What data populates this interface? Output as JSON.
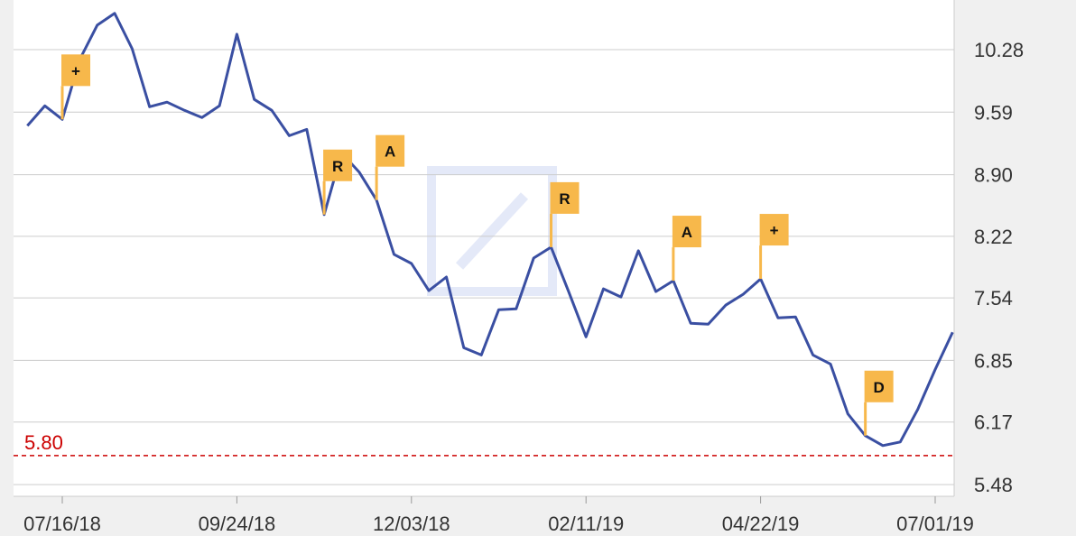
{
  "chart_data": {
    "type": "line",
    "x_ticks": [
      "07/16/18",
      "09/24/18",
      "12/03/18",
      "02/11/19",
      "04/22/19",
      "07/01/19"
    ],
    "y_ticks": [
      "10.28",
      "9.59",
      "8.90",
      "8.22",
      "7.54",
      "6.85",
      "6.17",
      "5.48"
    ],
    "ylim": [
      5.48,
      10.28
    ],
    "grid": true,
    "threshold": {
      "label": "5.80",
      "value": 5.8,
      "color": "#cc0000"
    },
    "series": [
      {
        "color": "#3a4fa2",
        "x": [
          "07/02/18",
          "07/09/18",
          "07/16/18",
          "07/23/18",
          "07/30/18",
          "08/06/18",
          "08/13/18",
          "08/20/18",
          "08/27/18",
          "09/03/18",
          "09/10/18",
          "09/17/18",
          "09/24/18",
          "10/01/18",
          "10/08/18",
          "10/15/18",
          "10/22/18",
          "10/29/18",
          "11/05/18",
          "11/12/18",
          "11/19/18",
          "11/26/18",
          "12/03/18",
          "12/10/18",
          "12/17/18",
          "12/24/18",
          "12/31/18",
          "01/07/19",
          "01/14/19",
          "01/21/19",
          "01/28/19",
          "02/04/19",
          "02/11/19",
          "02/18/19",
          "02/25/19",
          "03/04/19",
          "03/11/19",
          "03/18/19",
          "03/25/19",
          "04/01/19",
          "04/08/19",
          "04/15/19",
          "04/22/19",
          "04/29/19",
          "05/06/19",
          "05/13/19",
          "05/20/19",
          "05/27/19",
          "06/03/19",
          "06/10/19",
          "06/17/19",
          "06/24/19",
          "07/01/19",
          "07/08/19"
        ],
        "values": [
          9.44,
          9.66,
          9.51,
          10.17,
          10.55,
          10.68,
          10.29,
          9.65,
          9.7,
          9.61,
          9.53,
          9.66,
          10.45,
          9.73,
          9.61,
          9.33,
          9.4,
          8.46,
          9.14,
          8.93,
          8.62,
          8.02,
          7.92,
          7.62,
          7.77,
          6.99,
          6.91,
          7.41,
          7.42,
          7.98,
          8.1,
          7.61,
          7.11,
          7.64,
          7.55,
          8.06,
          7.61,
          7.73,
          7.26,
          7.25,
          7.46,
          7.58,
          7.75,
          7.32,
          7.33,
          6.91,
          6.81,
          6.26,
          6.02,
          5.91,
          5.95,
          6.31,
          6.75,
          7.16
        ]
      }
    ],
    "annotations": [
      {
        "label": "+",
        "x": "07/16/18"
      },
      {
        "label": "R",
        "x": "10/29/18"
      },
      {
        "label": "A",
        "x": "11/19/18"
      },
      {
        "label": "R",
        "x": "01/28/19"
      },
      {
        "label": "A",
        "x": "03/18/19"
      },
      {
        "label": "+",
        "x": "04/22/19"
      },
      {
        "label": "D",
        "x": "06/03/19"
      }
    ]
  }
}
